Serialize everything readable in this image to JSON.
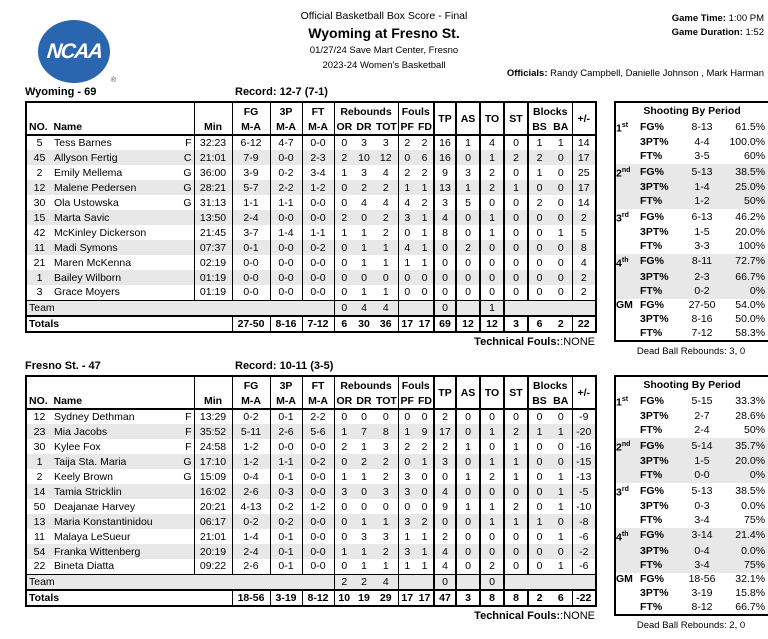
{
  "colors": {
    "logo_blue": "#2966AF",
    "row_stripe": "#E8E8E8"
  },
  "header": {
    "logo_text": "NCAA",
    "logo_reg": "®",
    "report_title": "Official Basketball Box Score - Final",
    "game_title": "Wyoming at Fresno St.",
    "venue_line": "01/27/24 Save Mart Center, Fresno",
    "season_line": "2023-24 Women's Basketball",
    "game_time_label": "Game Time:",
    "game_time": "1:00 PM",
    "game_duration_label": "Game Duration:",
    "game_duration": "1:52",
    "officials_label": "Officials:",
    "officials": "Randy Campbell, Danielle Johnson , Mark Harman"
  },
  "box_headers": {
    "no": "NO.",
    "name": "Name",
    "min": "Min",
    "fg": "FG",
    "p3": "3P",
    "ft": "FT",
    "ma": "M-A",
    "rebounds": "Rebounds",
    "or": "OR",
    "dr": "DR",
    "tot": "TOT",
    "fouls": "Fouls",
    "pf": "PF",
    "fd": "FD",
    "tp": "TP",
    "as": "AS",
    "to": "TO",
    "st": "ST",
    "blocks": "Blocks",
    "bs": "BS",
    "ba": "BA",
    "pm": "+/-",
    "team": "Team",
    "totals": "Totals"
  },
  "teams": [
    {
      "name": "Wyoming - 69",
      "record": "Record: 12-7 (7-1)",
      "players": [
        {
          "no": "5",
          "name": "Tess Barnes",
          "pos": "F",
          "min": "32:23",
          "fg": "6-12",
          "p3": "4-7",
          "ft": "0-0",
          "or": "0",
          "dr": "3",
          "tot": "3",
          "pf": "2",
          "fd": "2",
          "tp": "16",
          "as": "1",
          "to": "4",
          "st": "0",
          "bs": "1",
          "ba": "1",
          "pm": "14"
        },
        {
          "no": "45",
          "name": "Allyson Fertig",
          "pos": "C",
          "min": "21:01",
          "fg": "7-9",
          "p3": "0-0",
          "ft": "2-3",
          "or": "2",
          "dr": "10",
          "tot": "12",
          "pf": "0",
          "fd": "6",
          "tp": "16",
          "as": "0",
          "to": "1",
          "st": "2",
          "bs": "2",
          "ba": "0",
          "pm": "17"
        },
        {
          "no": "2",
          "name": "Emily Mellema",
          "pos": "G",
          "min": "36:00",
          "fg": "3-9",
          "p3": "0-2",
          "ft": "3-4",
          "or": "1",
          "dr": "3",
          "tot": "4",
          "pf": "2",
          "fd": "2",
          "tp": "9",
          "as": "3",
          "to": "2",
          "st": "0",
          "bs": "1",
          "ba": "0",
          "pm": "25"
        },
        {
          "no": "12",
          "name": "Malene Pedersen",
          "pos": "G",
          "min": "28:21",
          "fg": "5-7",
          "p3": "2-2",
          "ft": "1-2",
          "or": "0",
          "dr": "2",
          "tot": "2",
          "pf": "1",
          "fd": "1",
          "tp": "13",
          "as": "1",
          "to": "2",
          "st": "1",
          "bs": "0",
          "ba": "0",
          "pm": "17"
        },
        {
          "no": "30",
          "name": "Ola Ustowska",
          "pos": "G",
          "min": "31:13",
          "fg": "1-1",
          "p3": "1-1",
          "ft": "0-0",
          "or": "0",
          "dr": "4",
          "tot": "4",
          "pf": "4",
          "fd": "2",
          "tp": "3",
          "as": "5",
          "to": "0",
          "st": "0",
          "bs": "2",
          "ba": "0",
          "pm": "14"
        },
        {
          "no": "15",
          "name": "Marta Savic",
          "pos": "",
          "min": "13:50",
          "fg": "2-4",
          "p3": "0-0",
          "ft": "0-0",
          "or": "2",
          "dr": "0",
          "tot": "2",
          "pf": "3",
          "fd": "1",
          "tp": "4",
          "as": "0",
          "to": "1",
          "st": "0",
          "bs": "0",
          "ba": "0",
          "pm": "2"
        },
        {
          "no": "42",
          "name": "McKinley Dickerson",
          "pos": "",
          "min": "21:45",
          "fg": "3-7",
          "p3": "1-4",
          "ft": "1-1",
          "or": "1",
          "dr": "1",
          "tot": "2",
          "pf": "0",
          "fd": "1",
          "tp": "8",
          "as": "0",
          "to": "1",
          "st": "0",
          "bs": "0",
          "ba": "1",
          "pm": "5"
        },
        {
          "no": "11",
          "name": "Madi Symons",
          "pos": "",
          "min": "07:37",
          "fg": "0-1",
          "p3": "0-0",
          "ft": "0-2",
          "or": "0",
          "dr": "1",
          "tot": "1",
          "pf": "4",
          "fd": "1",
          "tp": "0",
          "as": "2",
          "to": "0",
          "st": "0",
          "bs": "0",
          "ba": "0",
          "pm": "8"
        },
        {
          "no": "21",
          "name": "Maren McKenna",
          "pos": "",
          "min": "02:19",
          "fg": "0-0",
          "p3": "0-0",
          "ft": "0-0",
          "or": "0",
          "dr": "1",
          "tot": "1",
          "pf": "1",
          "fd": "1",
          "tp": "0",
          "as": "0",
          "to": "0",
          "st": "0",
          "bs": "0",
          "ba": "0",
          "pm": "4"
        },
        {
          "no": "1",
          "name": "Bailey Wilborn",
          "pos": "",
          "min": "01:19",
          "fg": "0-0",
          "p3": "0-0",
          "ft": "0-0",
          "or": "0",
          "dr": "0",
          "tot": "0",
          "pf": "0",
          "fd": "0",
          "tp": "0",
          "as": "0",
          "to": "0",
          "st": "0",
          "bs": "0",
          "ba": "0",
          "pm": "2"
        },
        {
          "no": "3",
          "name": "Grace Moyers",
          "pos": "",
          "min": "01:19",
          "fg": "0-0",
          "p3": "0-0",
          "ft": "0-0",
          "or": "0",
          "dr": "1",
          "tot": "1",
          "pf": "0",
          "fd": "0",
          "tp": "0",
          "as": "0",
          "to": "0",
          "st": "0",
          "bs": "0",
          "ba": "0",
          "pm": "2"
        }
      ],
      "team_row": {
        "or": "0",
        "dr": "4",
        "tot": "4",
        "tp": "0",
        "to": "1"
      },
      "totals": {
        "fg": "27-50",
        "p3": "8-16",
        "ft": "7-12",
        "or": "6",
        "dr": "30",
        "tot": "36",
        "pf": "17",
        "fd": "17",
        "tp": "69",
        "as": "12",
        "to": "12",
        "st": "3",
        "bs": "6",
        "ba": "2",
        "pm": "22"
      },
      "technical_fouls_label": "Technical Fouls:",
      "technical_fouls_value": ":NONE",
      "shooting": {
        "title": "Shooting By Period",
        "periods": [
          {
            "label": "1",
            "sup": "st",
            "stats": [
              {
                "stat": "FG%",
                "ma": "8-13",
                "pct": "61.5%"
              },
              {
                "stat": "3PT%",
                "ma": "4-4",
                "pct": "100.0%"
              },
              {
                "stat": "FT%",
                "ma": "3-5",
                "pct": "60%"
              }
            ]
          },
          {
            "label": "2",
            "sup": "nd",
            "stats": [
              {
                "stat": "FG%",
                "ma": "5-13",
                "pct": "38.5%"
              },
              {
                "stat": "3PT%",
                "ma": "1-4",
                "pct": "25.0%"
              },
              {
                "stat": "FT%",
                "ma": "1-2",
                "pct": "50%"
              }
            ]
          },
          {
            "label": "3",
            "sup": "rd",
            "stats": [
              {
                "stat": "FG%",
                "ma": "6-13",
                "pct": "46.2%"
              },
              {
                "stat": "3PT%",
                "ma": "1-5",
                "pct": "20.0%"
              },
              {
                "stat": "FT%",
                "ma": "3-3",
                "pct": "100%"
              }
            ]
          },
          {
            "label": "4",
            "sup": "th",
            "stats": [
              {
                "stat": "FG%",
                "ma": "8-11",
                "pct": "72.7%"
              },
              {
                "stat": "3PT%",
                "ma": "2-3",
                "pct": "66.7%"
              },
              {
                "stat": "FT%",
                "ma": "0-2",
                "pct": "0%"
              }
            ]
          },
          {
            "label": "GM",
            "sup": "",
            "stats": [
              {
                "stat": "FG%",
                "ma": "27-50",
                "pct": "54.0%"
              },
              {
                "stat": "3PT%",
                "ma": "8-16",
                "pct": "50.0%"
              },
              {
                "stat": "FT%",
                "ma": "7-12",
                "pct": "58.3%"
              }
            ]
          }
        ]
      },
      "dead_ball_rebounds": "Dead Ball Rebounds: 3, 0"
    },
    {
      "name": "Fresno St. - 47",
      "record": "Record: 10-11 (3-5)",
      "players": [
        {
          "no": "12",
          "name": "Sydney Dethman",
          "pos": "F",
          "min": "13:29",
          "fg": "0-2",
          "p3": "0-1",
          "ft": "2-2",
          "or": "0",
          "dr": "0",
          "tot": "0",
          "pf": "0",
          "fd": "0",
          "tp": "2",
          "as": "0",
          "to": "0",
          "st": "0",
          "bs": "0",
          "ba": "0",
          "pm": "-9"
        },
        {
          "no": "23",
          "name": "Mia Jacobs",
          "pos": "F",
          "min": "35:52",
          "fg": "5-11",
          "p3": "2-6",
          "ft": "5-6",
          "or": "1",
          "dr": "7",
          "tot": "8",
          "pf": "1",
          "fd": "9",
          "tp": "17",
          "as": "0",
          "to": "1",
          "st": "2",
          "bs": "1",
          "ba": "1",
          "pm": "-20"
        },
        {
          "no": "30",
          "name": "Kylee Fox",
          "pos": "F",
          "min": "24:58",
          "fg": "1-2",
          "p3": "0-0",
          "ft": "0-0",
          "or": "2",
          "dr": "1",
          "tot": "3",
          "pf": "2",
          "fd": "2",
          "tp": "2",
          "as": "1",
          "to": "0",
          "st": "1",
          "bs": "0",
          "ba": "0",
          "pm": "-16"
        },
        {
          "no": "1",
          "name": "Taija Sta. Maria",
          "pos": "G",
          "min": "17:10",
          "fg": "1-2",
          "p3": "1-1",
          "ft": "0-2",
          "or": "0",
          "dr": "2",
          "tot": "2",
          "pf": "0",
          "fd": "1",
          "tp": "3",
          "as": "0",
          "to": "1",
          "st": "1",
          "bs": "0",
          "ba": "0",
          "pm": "-15"
        },
        {
          "no": "2",
          "name": "Keely Brown",
          "pos": "G",
          "min": "15:09",
          "fg": "0-4",
          "p3": "0-1",
          "ft": "0-0",
          "or": "1",
          "dr": "1",
          "tot": "2",
          "pf": "3",
          "fd": "0",
          "tp": "0",
          "as": "1",
          "to": "2",
          "st": "1",
          "bs": "0",
          "ba": "1",
          "pm": "-13"
        },
        {
          "no": "14",
          "name": "Tamia Stricklin",
          "pos": "",
          "min": "16:02",
          "fg": "2-6",
          "p3": "0-3",
          "ft": "0-0",
          "or": "3",
          "dr": "0",
          "tot": "3",
          "pf": "3",
          "fd": "0",
          "tp": "4",
          "as": "0",
          "to": "0",
          "st": "0",
          "bs": "0",
          "ba": "1",
          "pm": "-5"
        },
        {
          "no": "50",
          "name": "Deajanae Harvey",
          "pos": "",
          "min": "20:21",
          "fg": "4-13",
          "p3": "0-2",
          "ft": "1-2",
          "or": "0",
          "dr": "0",
          "tot": "0",
          "pf": "0",
          "fd": "0",
          "tp": "9",
          "as": "1",
          "to": "1",
          "st": "2",
          "bs": "0",
          "ba": "1",
          "pm": "-10"
        },
        {
          "no": "13",
          "name": "Maria Konstantinidou",
          "pos": "",
          "min": "06:17",
          "fg": "0-2",
          "p3": "0-2",
          "ft": "0-0",
          "or": "0",
          "dr": "1",
          "tot": "1",
          "pf": "3",
          "fd": "2",
          "tp": "0",
          "as": "0",
          "to": "1",
          "st": "1",
          "bs": "1",
          "ba": "0",
          "pm": "-8"
        },
        {
          "no": "11",
          "name": "Malaya LeSueur",
          "pos": "",
          "min": "21:01",
          "fg": "1-4",
          "p3": "0-1",
          "ft": "0-0",
          "or": "0",
          "dr": "3",
          "tot": "3",
          "pf": "1",
          "fd": "1",
          "tp": "2",
          "as": "0",
          "to": "0",
          "st": "0",
          "bs": "0",
          "ba": "1",
          "pm": "-6"
        },
        {
          "no": "54",
          "name": "Franka Wittenberg",
          "pos": "",
          "min": "20:19",
          "fg": "2-4",
          "p3": "0-1",
          "ft": "0-0",
          "or": "1",
          "dr": "1",
          "tot": "2",
          "pf": "3",
          "fd": "1",
          "tp": "4",
          "as": "0",
          "to": "0",
          "st": "0",
          "bs": "0",
          "ba": "0",
          "pm": "-2"
        },
        {
          "no": "22",
          "name": "Bineta Diatta",
          "pos": "",
          "min": "09:22",
          "fg": "2-6",
          "p3": "0-1",
          "ft": "0-0",
          "or": "0",
          "dr": "1",
          "tot": "1",
          "pf": "1",
          "fd": "1",
          "tp": "4",
          "as": "0",
          "to": "2",
          "st": "0",
          "bs": "0",
          "ba": "1",
          "pm": "-6"
        }
      ],
      "team_row": {
        "or": "2",
        "dr": "2",
        "tot": "4",
        "tp": "0",
        "to": "0"
      },
      "totals": {
        "fg": "18-56",
        "p3": "3-19",
        "ft": "8-12",
        "or": "10",
        "dr": "19",
        "tot": "29",
        "pf": "17",
        "fd": "17",
        "tp": "47",
        "as": "3",
        "to": "8",
        "st": "8",
        "bs": "2",
        "ba": "6",
        "pm": "-22"
      },
      "technical_fouls_label": "Technical Fouls:",
      "technical_fouls_value": ":NONE",
      "shooting": {
        "title": "Shooting By Period",
        "periods": [
          {
            "label": "1",
            "sup": "st",
            "stats": [
              {
                "stat": "FG%",
                "ma": "5-15",
                "pct": "33.3%"
              },
              {
                "stat": "3PT%",
                "ma": "2-7",
                "pct": "28.6%"
              },
              {
                "stat": "FT%",
                "ma": "2-4",
                "pct": "50%"
              }
            ]
          },
          {
            "label": "2",
            "sup": "nd",
            "stats": [
              {
                "stat": "FG%",
                "ma": "5-14",
                "pct": "35.7%"
              },
              {
                "stat": "3PT%",
                "ma": "1-5",
                "pct": "20.0%"
              },
              {
                "stat": "FT%",
                "ma": "0-0",
                "pct": "0%"
              }
            ]
          },
          {
            "label": "3",
            "sup": "rd",
            "stats": [
              {
                "stat": "FG%",
                "ma": "5-13",
                "pct": "38.5%"
              },
              {
                "stat": "3PT%",
                "ma": "0-3",
                "pct": "0.0%"
              },
              {
                "stat": "FT%",
                "ma": "3-4",
                "pct": "75%"
              }
            ]
          },
          {
            "label": "4",
            "sup": "th",
            "stats": [
              {
                "stat": "FG%",
                "ma": "3-14",
                "pct": "21.4%"
              },
              {
                "stat": "3PT%",
                "ma": "0-4",
                "pct": "0.0%"
              },
              {
                "stat": "FT%",
                "ma": "3-4",
                "pct": "75%"
              }
            ]
          },
          {
            "label": "GM",
            "sup": "",
            "stats": [
              {
                "stat": "FG%",
                "ma": "18-56",
                "pct": "32.1%"
              },
              {
                "stat": "3PT%",
                "ma": "3-19",
                "pct": "15.8%"
              },
              {
                "stat": "FT%",
                "ma": "8-12",
                "pct": "66.7%"
              }
            ]
          }
        ]
      },
      "dead_ball_rebounds": "Dead Ball Rebounds: 2, 0"
    }
  ]
}
